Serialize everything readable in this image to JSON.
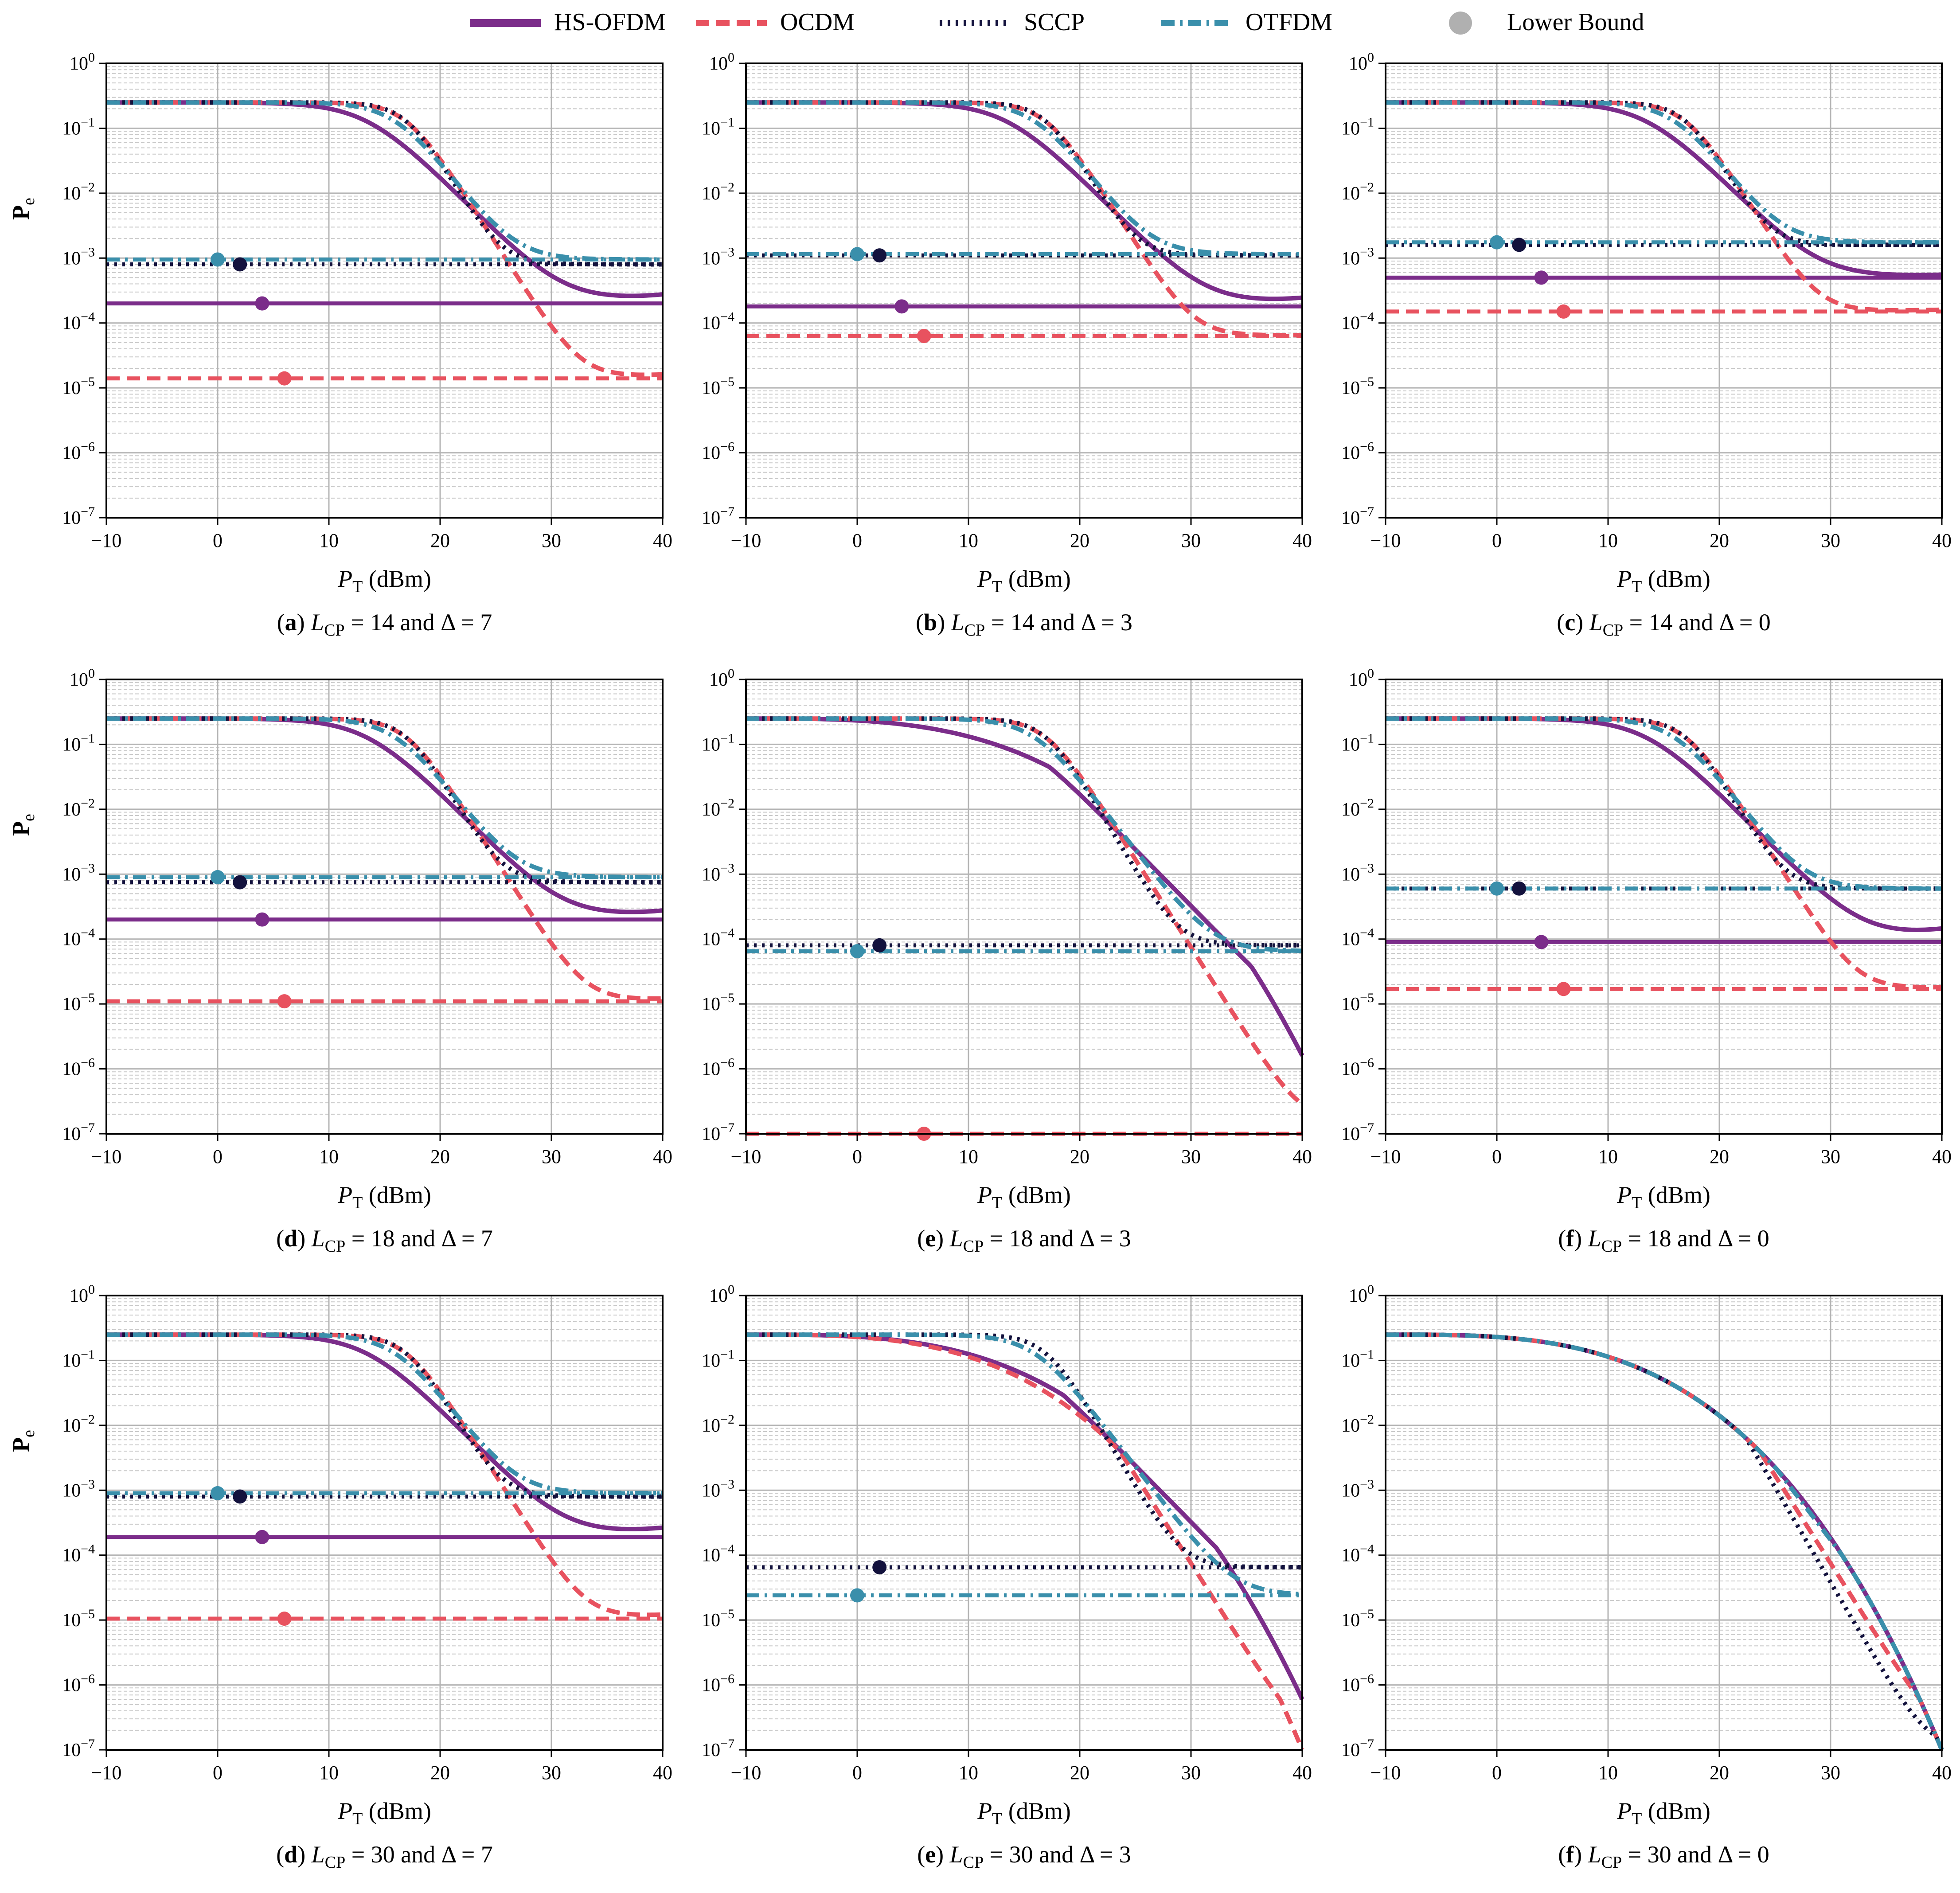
{
  "legend": [
    {
      "name": "HS-OFDM",
      "color": "#7b2d8a",
      "style": "solid"
    },
    {
      "name": "OCDM",
      "color": "#e8525f",
      "style": "dashed"
    },
    {
      "name": "SCCP",
      "color": "#13123d",
      "style": "dotted"
    },
    {
      "name": "OTFDM",
      "color": "#3a8fab",
      "style": "dashdot"
    },
    {
      "name": "Lower Bound",
      "color": "#b0b0b0",
      "style": "marker"
    }
  ],
  "axes": {
    "xlabel": "P_T (dBm)",
    "xlabel_main": "P",
    "xlabel_sub": "T",
    "xlabel_unit": " (dBm)",
    "ylabel": "Pe",
    "xticks": [
      "−10",
      "0",
      "10",
      "20",
      "30",
      "40"
    ],
    "yticks": [
      "10^0",
      "10^-1",
      "10^-2",
      "10^-3",
      "10^-4",
      "10^-5",
      "10^-6",
      "10^-7"
    ],
    "xlim": [
      -10,
      40
    ],
    "ylim_exp": [
      -7,
      0
    ],
    "yscale": "log",
    "grid": true
  },
  "chart_data": [
    {
      "type": "line",
      "panel": "a",
      "caption_letter": "(a)",
      "L_CP": "14",
      "delta": "7",
      "floors": {
        "HS-OFDM": 0.0002,
        "OCDM": 1.4e-05,
        "SCCP": 0.0008,
        "OTFDM": 0.00095
      },
      "final": {
        "HS-OFDM": 0.00027,
        "OCDM": 1.6e-05,
        "SCCP": 0.0008,
        "OTFDM": 0.00095
      },
      "markers": {
        "HS-OFDM": [
          4,
          0.0002
        ],
        "OCDM": [
          6,
          1.4e-05
        ],
        "SCCP": [
          2,
          0.0008
        ],
        "OTFDM": [
          0,
          0.00095
        ]
      }
    },
    {
      "type": "line",
      "panel": "b",
      "caption_letter": "(b)",
      "L_CP": "14",
      "delta": "3",
      "floors": {
        "HS-OFDM": 0.00018,
        "OCDM": 6.3e-05,
        "SCCP": 0.0011,
        "OTFDM": 0.00115
      },
      "final": {
        "HS-OFDM": 0.00024,
        "OCDM": 6.5e-05,
        "SCCP": 0.0011,
        "OTFDM": 0.00115
      },
      "markers": {
        "HS-OFDM": [
          4,
          0.00018
        ],
        "OCDM": [
          6,
          6.3e-05
        ],
        "SCCP": [
          2,
          0.0011
        ],
        "OTFDM": [
          0,
          0.00115
        ]
      }
    },
    {
      "type": "line",
      "panel": "c",
      "caption_letter": "(c)",
      "L_CP": "14",
      "delta": "0",
      "floors": {
        "HS-OFDM": 0.0005,
        "OCDM": 0.00015,
        "SCCP": 0.0016,
        "OTFDM": 0.00175
      },
      "final": {
        "HS-OFDM": 0.00055,
        "OCDM": 0.00016,
        "SCCP": 0.0016,
        "OTFDM": 0.00175
      },
      "markers": {
        "HS-OFDM": [
          4,
          0.0005
        ],
        "OCDM": [
          6,
          0.00015
        ],
        "SCCP": [
          2,
          0.0016
        ],
        "OTFDM": [
          0,
          0.00175
        ]
      }
    },
    {
      "type": "line",
      "panel": "d",
      "caption_letter": "(d)",
      "L_CP": "18",
      "delta": "7",
      "floors": {
        "HS-OFDM": 0.0002,
        "OCDM": 1.1e-05,
        "SCCP": 0.00075,
        "OTFDM": 0.0009
      },
      "final": {
        "HS-OFDM": 0.00027,
        "OCDM": 1.2e-05,
        "SCCP": 0.00075,
        "OTFDM": 0.0009
      },
      "markers": {
        "HS-OFDM": [
          4,
          0.0002
        ],
        "OCDM": [
          6,
          1.1e-05
        ],
        "SCCP": [
          2,
          0.00075
        ],
        "OTFDM": [
          0,
          0.0009
        ]
      }
    },
    {
      "type": "line",
      "panel": "e",
      "caption_letter": "(e)",
      "L_CP": "18",
      "delta": "3",
      "floors": {
        "HS-OFDM": null,
        "OCDM": 1e-07,
        "SCCP": 8e-05,
        "OTFDM": 6.5e-05
      },
      "final": {
        "HS-OFDM": 1.6e-06,
        "OCDM": 1.4e-07,
        "SCCP": 8e-05,
        "OTFDM": 6.5e-05
      },
      "markers": {
        "OCDM": [
          6,
          1e-07
        ],
        "SCCP": [
          2,
          8e-05
        ],
        "OTFDM": [
          0,
          6.5e-05
        ]
      }
    },
    {
      "type": "line",
      "panel": "f",
      "caption_letter": "(f)",
      "L_CP": "18",
      "delta": "0",
      "floors": {
        "HS-OFDM": 9e-05,
        "OCDM": 1.7e-05,
        "SCCP": 0.0006,
        "OTFDM": 0.0006
      },
      "final": {
        "HS-OFDM": 0.00014,
        "OCDM": 1.8e-05,
        "SCCP": 0.0006,
        "OTFDM": 0.0006
      },
      "markers": {
        "HS-OFDM": [
          4,
          9e-05
        ],
        "OCDM": [
          6,
          1.7e-05
        ],
        "SCCP": [
          2,
          0.0006
        ],
        "OTFDM": [
          0,
          0.0006
        ]
      }
    },
    {
      "type": "line",
      "panel": "g",
      "caption_letter": "(d)",
      "L_CP": "30",
      "delta": "7",
      "floors": {
        "HS-OFDM": 0.00019,
        "OCDM": 1.05e-05,
        "SCCP": 0.0008,
        "OTFDM": 0.0009
      },
      "final": {
        "HS-OFDM": 0.00026,
        "OCDM": 1.2e-05,
        "SCCP": 0.0008,
        "OTFDM": 0.0009
      },
      "markers": {
        "HS-OFDM": [
          4,
          0.00019
        ],
        "OCDM": [
          6,
          1.05e-05
        ],
        "SCCP": [
          2,
          0.0008
        ],
        "OTFDM": [
          0,
          0.0009
        ]
      }
    },
    {
      "type": "line",
      "panel": "h",
      "caption_letter": "(e)",
      "L_CP": "30",
      "delta": "3",
      "floors": {
        "HS-OFDM": null,
        "OCDM": null,
        "SCCP": 6.5e-05,
        "OTFDM": 2.4e-05
      },
      "final": {
        "HS-OFDM": 6e-07,
        "OCDM": 1e-07,
        "SCCP": 6.5e-05,
        "OTFDM": 2.4e-05
      },
      "markers": {
        "SCCP": [
          2,
          6.5e-05
        ],
        "OTFDM": [
          0,
          2.4e-05
        ]
      }
    },
    {
      "type": "line",
      "panel": "i",
      "caption_letter": "(f)",
      "L_CP": "30",
      "delta": "0",
      "floors": {
        "HS-OFDM": null,
        "OCDM": null,
        "SCCP": null,
        "OTFDM": null
      },
      "final": {
        "HS-OFDM": 1e-07,
        "OCDM": 1e-07,
        "SCCP": 1e-07,
        "OTFDM": 1e-07
      },
      "markers": {}
    }
  ]
}
